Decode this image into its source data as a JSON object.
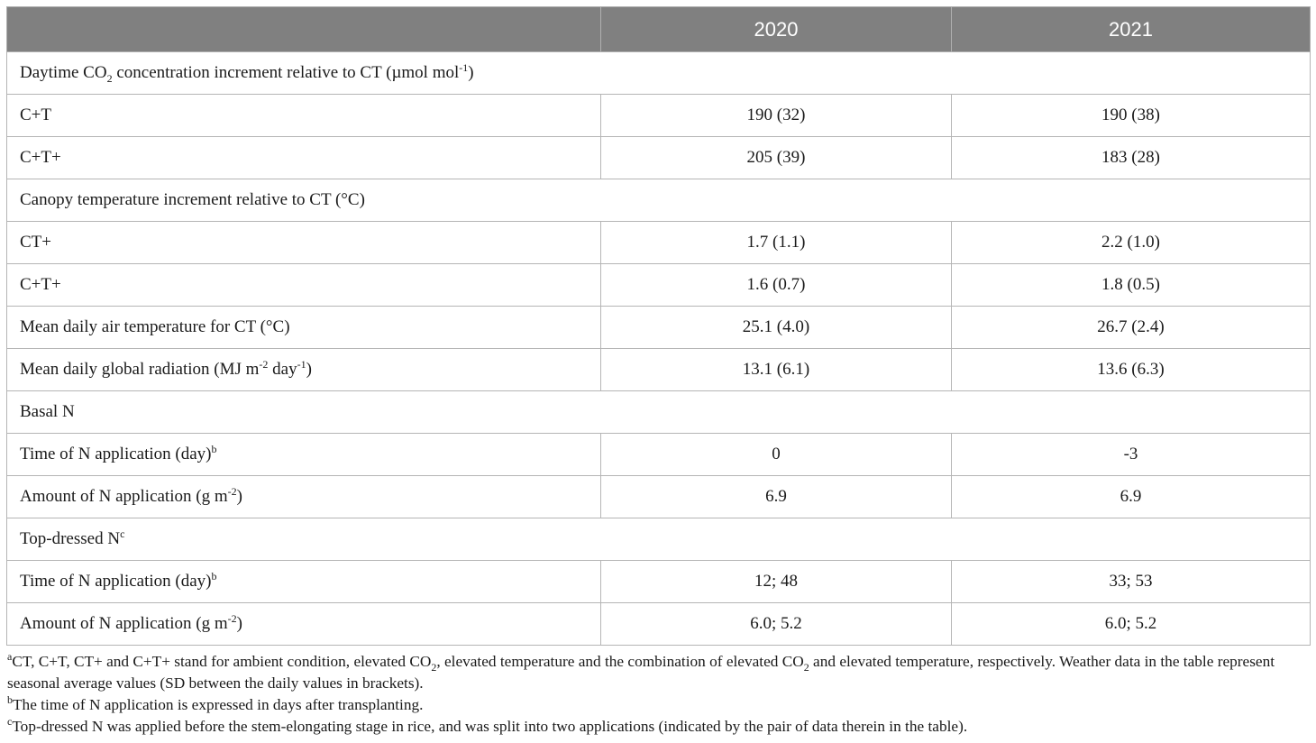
{
  "header": {
    "col1": "",
    "col2": "2020",
    "col3": "2021"
  },
  "rows": {
    "co2_section": {
      "label_a": "Daytime CO",
      "label_sub": "2",
      "label_b": " concentration increment relative to CT (µmol mol",
      "label_sup": "-1",
      "label_c": ")"
    },
    "co2_ct": {
      "label": "C+T",
      "v2020": "190 (32)",
      "v2021": "190 (38)"
    },
    "co2_ctplus": {
      "label": "C+T+",
      "v2020": "205 (39)",
      "v2021": "183 (28)"
    },
    "temp_section": {
      "label": "Canopy temperature increment relative to CT (°C)"
    },
    "temp_ctplus": {
      "label": "CT+",
      "v2020": "1.7 (1.1)",
      "v2021": "2.2 (1.0)"
    },
    "temp_cplustplus": {
      "label": "C+T+",
      "v2020": "1.6 (0.7)",
      "v2021": "1.8 (0.5)"
    },
    "air_temp": {
      "label": "Mean daily air temperature for CT (°C)",
      "v2020": "25.1 (4.0)",
      "v2021": "26.7 (2.4)"
    },
    "radiation": {
      "label_a": "Mean daily global radiation (MJ m",
      "label_sup1": "-2",
      "label_b": " day",
      "label_sup2": "-1",
      "label_c": ")",
      "v2020": "13.1 (6.1)",
      "v2021": "13.6 (6.3)"
    },
    "basal_section": {
      "label": "Basal N"
    },
    "basal_time": {
      "label": "Time of N application (day)",
      "sup": "b",
      "v2020": "0",
      "v2021": "-3"
    },
    "basal_amount": {
      "label_a": "Amount of N application (g m",
      "label_sup": "-2",
      "label_c": ")",
      "v2020": "6.9",
      "v2021": "6.9"
    },
    "top_section": {
      "label": "Top-dressed N",
      "sup": "c"
    },
    "top_time": {
      "label": "Time of N application (day)",
      "sup": "b",
      "v2020": "12; 48",
      "v2021": "33; 53"
    },
    "top_amount": {
      "label_a": "Amount of N application (g m",
      "label_sup": "-2",
      "label_c": ")",
      "v2020": "6.0; 5.2",
      "v2021": "6.0; 5.2"
    }
  },
  "footnotes": {
    "a": {
      "mark": "a",
      "text_1": "CT, C+T, CT+ and C+T+ stand for ambient condition, elevated CO",
      "sub_1": "2",
      "text_2": ", elevated temperature and the combination of elevated CO",
      "sub_2": "2",
      "text_3": " and elevated temperature, respectively. Weather data in the table represent seasonal average values (SD between the daily values in brackets)."
    },
    "b": {
      "mark": "b",
      "text": "The time of N application is expressed in days after transplanting."
    },
    "c": {
      "mark": "c",
      "text": "Top-dressed N was applied before the stem-elongating stage in rice, and was split into two applications (indicated by the pair of data therein in the table)."
    }
  }
}
